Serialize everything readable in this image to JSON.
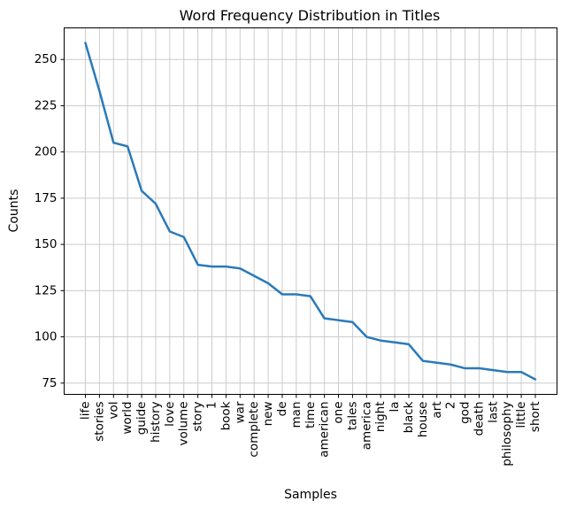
{
  "chart_data": {
    "type": "line",
    "title": "Word Frequency Distribution in Titles",
    "xlabel": "Samples",
    "ylabel": "Counts",
    "categories": [
      "life",
      "stories",
      "vol",
      "world",
      "guide",
      "history",
      "love",
      "volume",
      "story",
      "1",
      "book",
      "war",
      "complete",
      "new",
      "de",
      "man",
      "time",
      "american",
      "one",
      "tales",
      "america",
      "night",
      "la",
      "black",
      "house",
      "art",
      "2",
      "god",
      "death",
      "last",
      "philosophy",
      "little",
      "short"
    ],
    "series": [
      {
        "values": [
          259,
          233,
          205,
          203,
          179,
          172,
          157,
          154,
          139,
          138,
          138,
          137,
          133,
          129,
          123,
          123,
          122,
          110,
          109,
          108,
          100,
          98,
          97,
          96,
          87,
          86,
          85,
          83,
          83,
          82,
          81,
          81,
          77
        ],
        "color": "#2a7ab9"
      }
    ],
    "ylim": [
      68.9,
      267.1
    ],
    "yticks": [
      75,
      100,
      125,
      150,
      175,
      200,
      225,
      250
    ],
    "grid": true,
    "legend": "none"
  }
}
